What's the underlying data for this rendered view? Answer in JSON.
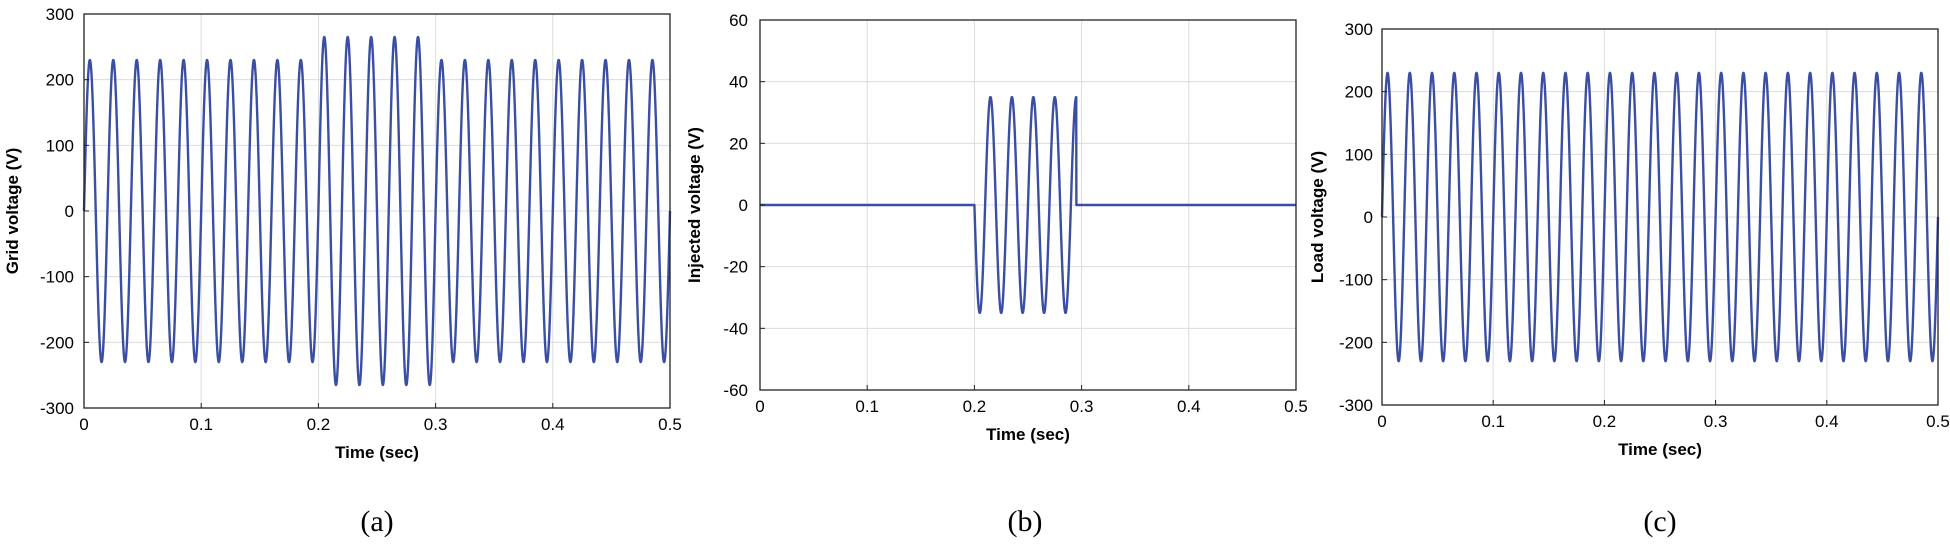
{
  "colors": {
    "trace": "#3a4fa3"
  },
  "chart_data": [
    {
      "type": "line",
      "panel_label": "(a)",
      "xlabel": "Time (sec)",
      "ylabel": "Grid voltage (V)",
      "xlim": [
        0,
        0.5
      ],
      "ylim": [
        -300,
        300
      ],
      "xticks": [
        0,
        0.1,
        0.2,
        0.3,
        0.4,
        0.5
      ],
      "xtick_labels": [
        "0",
        "0.1",
        "0.2",
        "0.3",
        "0.4",
        "0.5"
      ],
      "yticks": [
        -300,
        -200,
        -100,
        0,
        100,
        200,
        300
      ],
      "ytick_labels": [
        "-300",
        "-200",
        "-100",
        "0",
        "100",
        "200",
        "300"
      ],
      "grid": true,
      "series": [
        {
          "name": "Grid voltage",
          "waveform": "sine",
          "frequency_hz": 50,
          "segments": [
            {
              "t_start": 0,
              "t_end": 0.2,
              "amplitude": 230
            },
            {
              "t_start": 0.2,
              "t_end": 0.3,
              "amplitude": 265
            },
            {
              "t_start": 0.3,
              "t_end": 0.5,
              "amplitude": 230
            }
          ]
        }
      ]
    },
    {
      "type": "line",
      "panel_label": "(b)",
      "xlabel": "Time (sec)",
      "ylabel": "Injected voltage (V)",
      "xlim": [
        0,
        0.5
      ],
      "ylim": [
        -60,
        60
      ],
      "xticks": [
        0,
        0.1,
        0.2,
        0.3,
        0.4,
        0.5
      ],
      "xtick_labels": [
        "0",
        "0.1",
        "0.2",
        "0.3",
        "0.4",
        "0.5"
      ],
      "yticks": [
        -60,
        -40,
        -20,
        0,
        20,
        40,
        60
      ],
      "ytick_labels": [
        "-60",
        "-40",
        "-20",
        "0",
        "20",
        "40",
        "60"
      ],
      "grid": true,
      "series": [
        {
          "name": "Injected voltage",
          "waveform": "sine",
          "frequency_hz": 50,
          "segments": [
            {
              "t_start": 0,
              "t_end": 0.2,
              "amplitude": 0
            },
            {
              "t_start": 0.2,
              "t_end": 0.295,
              "amplitude": 35,
              "sign": -1
            },
            {
              "t_start": 0.295,
              "t_end": 0.5,
              "amplitude": 0
            }
          ]
        }
      ]
    },
    {
      "type": "line",
      "panel_label": "(c)",
      "xlabel": "Time (sec)",
      "ylabel": "Load voltage (V)",
      "xlim": [
        0,
        0.5
      ],
      "ylim": [
        -300,
        300
      ],
      "xticks": [
        0,
        0.1,
        0.2,
        0.3,
        0.4,
        0.5
      ],
      "xtick_labels": [
        "0",
        "0.1",
        "0.2",
        "0.3",
        "0.4",
        "0.5"
      ],
      "yticks": [
        -300,
        -200,
        -100,
        0,
        100,
        200,
        300
      ],
      "ytick_labels": [
        "-300",
        "-200",
        "-100",
        "0",
        "100",
        "200",
        "300"
      ],
      "grid": true,
      "series": [
        {
          "name": "Load voltage",
          "waveform": "sine",
          "frequency_hz": 50,
          "segments": [
            {
              "t_start": 0,
              "t_end": 0.5,
              "amplitude": 230
            }
          ]
        }
      ]
    }
  ]
}
